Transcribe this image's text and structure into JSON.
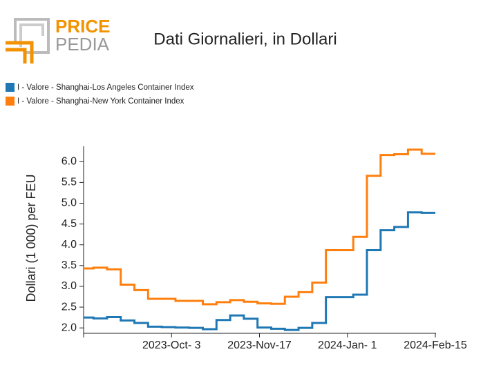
{
  "brand": {
    "part1": "PRICE",
    "part2": "PEDIA"
  },
  "chart_data": {
    "type": "line",
    "step": "post",
    "title": "Dati Giornalieri, in Dollari",
    "ylabel": "Dollari (1 000) per FEU",
    "x": [
      "2023-08-17",
      "2023-08-24",
      "2023-08-31",
      "2023-09-07",
      "2023-09-14",
      "2023-09-21",
      "2023-09-28",
      "2023-10-05",
      "2023-10-12",
      "2023-10-19",
      "2023-10-26",
      "2023-11-02",
      "2023-11-09",
      "2023-11-16",
      "2023-11-23",
      "2023-11-30",
      "2023-12-07",
      "2023-12-14",
      "2023-12-21",
      "2023-12-28",
      "2024-01-04",
      "2024-01-11",
      "2024-01-18",
      "2024-01-25",
      "2024-02-01",
      "2024-02-08",
      "2024-02-15"
    ],
    "series": [
      {
        "name": "I - Valore - Shanghai-Los Angeles Container Index",
        "color": "#1f77b4",
        "values": [
          2.25,
          2.23,
          2.26,
          2.18,
          2.12,
          2.03,
          2.02,
          2.01,
          2.0,
          1.97,
          2.19,
          2.3,
          2.22,
          2.01,
          1.98,
          1.95,
          2.0,
          2.12,
          2.74,
          2.74,
          2.8,
          3.87,
          4.35,
          4.43,
          4.78,
          4.77,
          4.77
        ]
      },
      {
        "name": "I - Valore - Shanghai-New York Container Index",
        "color": "#ff7f0e",
        "values": [
          3.43,
          3.45,
          3.41,
          3.04,
          2.91,
          2.7,
          2.7,
          2.65,
          2.65,
          2.57,
          2.62,
          2.67,
          2.63,
          2.59,
          2.58,
          2.75,
          2.86,
          3.09,
          3.87,
          3.87,
          4.19,
          5.66,
          6.16,
          6.18,
          6.29,
          6.19,
          6.19
        ]
      }
    ],
    "xlim": [
      "2023-08-19",
      "2024-02-15"
    ],
    "xticks": [
      {
        "value": "2023-10-03",
        "label": "2023-Oct- 3"
      },
      {
        "value": "2023-11-17",
        "label": "2023-Nov-17"
      },
      {
        "value": "2024-01-01",
        "label": "2024-Jan- 1"
      },
      {
        "value": "2024-02-15",
        "label": "2024-Feb-15"
      }
    ],
    "ylim": [
      1.87,
      6.37
    ],
    "yticks": [
      {
        "value": 2,
        "label": "2.0"
      },
      {
        "value": 2.5,
        "label": "2.5"
      },
      {
        "value": 3,
        "label": "3.0"
      },
      {
        "value": 3.5,
        "label": "3.5"
      },
      {
        "value": 4,
        "label": "4.0"
      },
      {
        "value": 4.5,
        "label": "4.5"
      },
      {
        "value": 5,
        "label": "5.0"
      },
      {
        "value": 5.5,
        "label": "5.5"
      },
      {
        "value": 6,
        "label": "6.0"
      }
    ],
    "legend": "top-left",
    "grid": false
  }
}
